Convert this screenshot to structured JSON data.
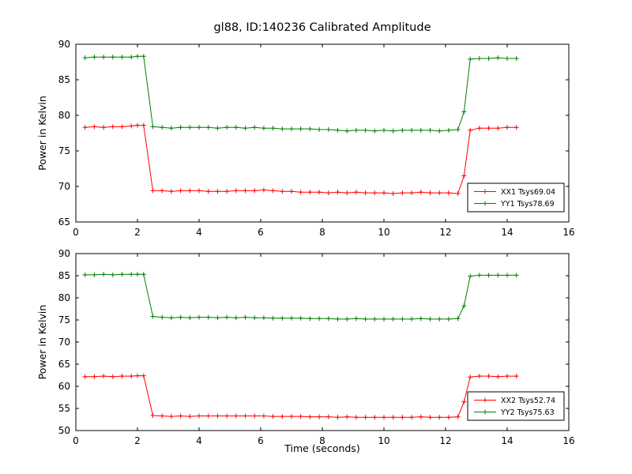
{
  "figure": {
    "title": "gl88, ID:140236 Calibrated Amplitude",
    "background": "#ffffff",
    "axis_color": "#000000"
  },
  "chart_data": [
    {
      "type": "line",
      "ylabel": "Power in Kelvin",
      "xlabel": "",
      "xlim": [
        0,
        16
      ],
      "ylim": [
        65,
        90
      ],
      "xticks": [
        0,
        2,
        4,
        6,
        8,
        10,
        12,
        14,
        16
      ],
      "yticks": [
        65,
        70,
        75,
        80,
        85,
        90
      ],
      "grid": false,
      "legend_position": "lower right",
      "legend": [
        "XX1 Tsys69.04",
        "YY1 Tsys78.69"
      ],
      "series": [
        {
          "name": "XX1 Tsys69.04",
          "color": "#ff0000",
          "marker": "plus",
          "x": [
            0.3,
            0.6,
            0.9,
            1.2,
            1.5,
            1.8,
            2.0,
            2.2,
            2.5,
            2.8,
            3.1,
            3.4,
            3.7,
            4.0,
            4.3,
            4.6,
            4.9,
            5.2,
            5.5,
            5.8,
            6.1,
            6.4,
            6.7,
            7.0,
            7.3,
            7.6,
            7.9,
            8.2,
            8.5,
            8.8,
            9.1,
            9.4,
            9.7,
            10.0,
            10.3,
            10.6,
            10.9,
            11.2,
            11.5,
            11.8,
            12.1,
            12.4,
            12.6,
            12.8,
            13.1,
            13.4,
            13.7,
            14.0,
            14.3
          ],
          "y": [
            78.3,
            78.4,
            78.3,
            78.4,
            78.4,
            78.5,
            78.6,
            78.6,
            69.4,
            69.4,
            69.3,
            69.4,
            69.4,
            69.4,
            69.3,
            69.3,
            69.3,
            69.4,
            69.4,
            69.4,
            69.5,
            69.4,
            69.3,
            69.3,
            69.2,
            69.2,
            69.2,
            69.1,
            69.2,
            69.1,
            69.2,
            69.1,
            69.1,
            69.1,
            69.0,
            69.1,
            69.1,
            69.2,
            69.1,
            69.1,
            69.1,
            69.0,
            71.5,
            77.9,
            78.2,
            78.2,
            78.2,
            78.3,
            78.3
          ]
        },
        {
          "name": "YY1 Tsys78.69",
          "color": "#008000",
          "marker": "plus",
          "x": [
            0.3,
            0.6,
            0.9,
            1.2,
            1.5,
            1.8,
            2.0,
            2.2,
            2.5,
            2.8,
            3.1,
            3.4,
            3.7,
            4.0,
            4.3,
            4.6,
            4.9,
            5.2,
            5.5,
            5.8,
            6.1,
            6.4,
            6.7,
            7.0,
            7.3,
            7.6,
            7.9,
            8.2,
            8.5,
            8.8,
            9.1,
            9.4,
            9.7,
            10.0,
            10.3,
            10.6,
            10.9,
            11.2,
            11.5,
            11.8,
            12.1,
            12.4,
            12.6,
            12.8,
            13.1,
            13.4,
            13.7,
            14.0,
            14.3
          ],
          "y": [
            88.1,
            88.2,
            88.2,
            88.2,
            88.2,
            88.2,
            88.3,
            88.3,
            78.4,
            78.3,
            78.2,
            78.3,
            78.3,
            78.3,
            78.3,
            78.2,
            78.3,
            78.3,
            78.2,
            78.3,
            78.2,
            78.2,
            78.1,
            78.1,
            78.1,
            78.1,
            78.0,
            78.0,
            77.9,
            77.8,
            77.9,
            77.9,
            77.8,
            77.9,
            77.8,
            77.9,
            77.9,
            77.9,
            77.9,
            77.8,
            77.9,
            78.0,
            80.5,
            87.9,
            88.0,
            88.0,
            88.1,
            88.0,
            88.0
          ]
        }
      ]
    },
    {
      "type": "line",
      "ylabel": "Power in Kelvin",
      "xlabel": "Time (seconds)",
      "xlim": [
        0,
        16
      ],
      "ylim": [
        50,
        90
      ],
      "xticks": [
        0,
        2,
        4,
        6,
        8,
        10,
        12,
        14,
        16
      ],
      "yticks": [
        50,
        55,
        60,
        65,
        70,
        75,
        80,
        85,
        90
      ],
      "grid": false,
      "legend_position": "lower right",
      "legend": [
        "XX2 Tsys52.74",
        "YY2 Tsys75.63"
      ],
      "series": [
        {
          "name": "XX2 Tsys52.74",
          "color": "#ff0000",
          "marker": "plus",
          "x": [
            0.3,
            0.6,
            0.9,
            1.2,
            1.5,
            1.8,
            2.0,
            2.2,
            2.5,
            2.8,
            3.1,
            3.4,
            3.7,
            4.0,
            4.3,
            4.6,
            4.9,
            5.2,
            5.5,
            5.8,
            6.1,
            6.4,
            6.7,
            7.0,
            7.3,
            7.6,
            7.9,
            8.2,
            8.5,
            8.8,
            9.1,
            9.4,
            9.7,
            10.0,
            10.3,
            10.6,
            10.9,
            11.2,
            11.5,
            11.8,
            12.1,
            12.4,
            12.6,
            12.8,
            13.1,
            13.4,
            13.7,
            14.0,
            14.3
          ],
          "y": [
            62.2,
            62.2,
            62.3,
            62.2,
            62.3,
            62.3,
            62.4,
            62.4,
            53.4,
            53.3,
            53.2,
            53.3,
            53.2,
            53.3,
            53.3,
            53.3,
            53.3,
            53.3,
            53.3,
            53.3,
            53.3,
            53.2,
            53.2,
            53.2,
            53.2,
            53.1,
            53.1,
            53.1,
            53.0,
            53.1,
            53.0,
            53.0,
            53.0,
            53.0,
            53.0,
            53.0,
            53.0,
            53.1,
            53.0,
            53.0,
            53.0,
            53.1,
            56.5,
            62.1,
            62.3,
            62.3,
            62.2,
            62.3,
            62.3
          ]
        },
        {
          "name": "YY2 Tsys75.63",
          "color": "#008000",
          "marker": "plus",
          "x": [
            0.3,
            0.6,
            0.9,
            1.2,
            1.5,
            1.8,
            2.0,
            2.2,
            2.5,
            2.8,
            3.1,
            3.4,
            3.7,
            4.0,
            4.3,
            4.6,
            4.9,
            5.2,
            5.5,
            5.8,
            6.1,
            6.4,
            6.7,
            7.0,
            7.3,
            7.6,
            7.9,
            8.2,
            8.5,
            8.8,
            9.1,
            9.4,
            9.7,
            10.0,
            10.3,
            10.6,
            10.9,
            11.2,
            11.5,
            11.8,
            12.1,
            12.4,
            12.6,
            12.8,
            13.1,
            13.4,
            13.7,
            14.0,
            14.3
          ],
          "y": [
            85.2,
            85.2,
            85.3,
            85.2,
            85.3,
            85.3,
            85.3,
            85.3,
            75.8,
            75.6,
            75.5,
            75.6,
            75.5,
            75.6,
            75.6,
            75.5,
            75.6,
            75.5,
            75.6,
            75.5,
            75.5,
            75.4,
            75.4,
            75.4,
            75.4,
            75.3,
            75.3,
            75.3,
            75.2,
            75.2,
            75.3,
            75.2,
            75.2,
            75.2,
            75.2,
            75.2,
            75.2,
            75.3,
            75.2,
            75.2,
            75.2,
            75.3,
            78.2,
            84.9,
            85.1,
            85.1,
            85.1,
            85.1,
            85.1
          ]
        }
      ]
    }
  ]
}
